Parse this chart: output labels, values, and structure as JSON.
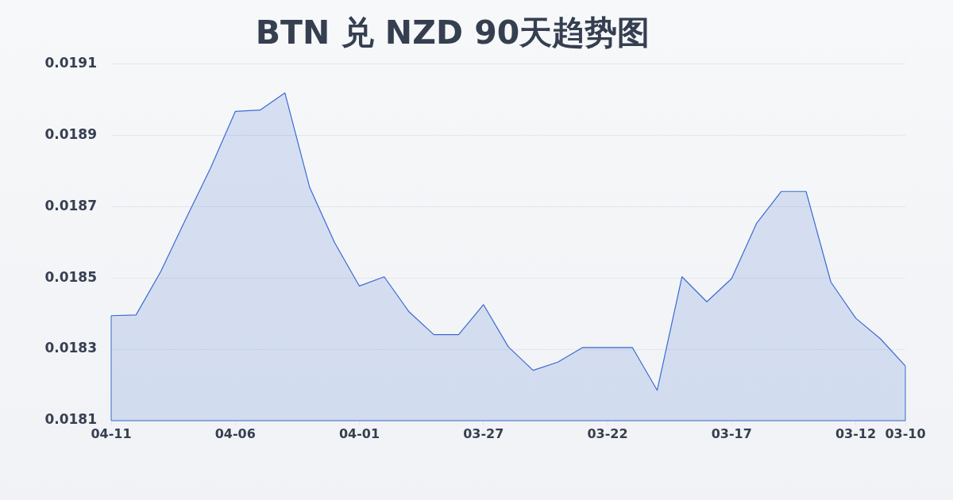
{
  "chart_data": {
    "type": "area",
    "title": "BTN 兑 NZD 90天趋势图",
    "categories": [
      "04-11",
      null,
      null,
      null,
      null,
      "04-06",
      null,
      null,
      null,
      null,
      "04-01",
      null,
      null,
      null,
      null,
      "03-27",
      null,
      null,
      null,
      null,
      "03-22",
      null,
      null,
      null,
      null,
      "03-17",
      null,
      null,
      null,
      null,
      "03-12",
      null,
      "03-10"
    ],
    "values": [
      0.018394,
      0.018396,
      0.018518,
      0.018664,
      0.018807,
      0.018966,
      0.01897,
      0.019018,
      0.018753,
      0.018599,
      0.018477,
      0.018503,
      0.018405,
      0.018341,
      0.018341,
      0.018425,
      0.018307,
      0.018241,
      0.018264,
      0.018305,
      0.018305,
      0.018305,
      0.018185,
      0.018503,
      0.018433,
      0.018498,
      0.018652,
      0.018742,
      0.018742,
      0.018488,
      0.018387,
      0.018329,
      0.018253
    ],
    "color": "#3a6bd0",
    "ylim": [
      0.0181,
      0.0191
    ],
    "yticks": [
      0.0181,
      0.0183,
      0.0185,
      0.0187,
      0.0189,
      0.0191
    ],
    "grid": "y",
    "marker": "none",
    "line_style": "solid"
  }
}
